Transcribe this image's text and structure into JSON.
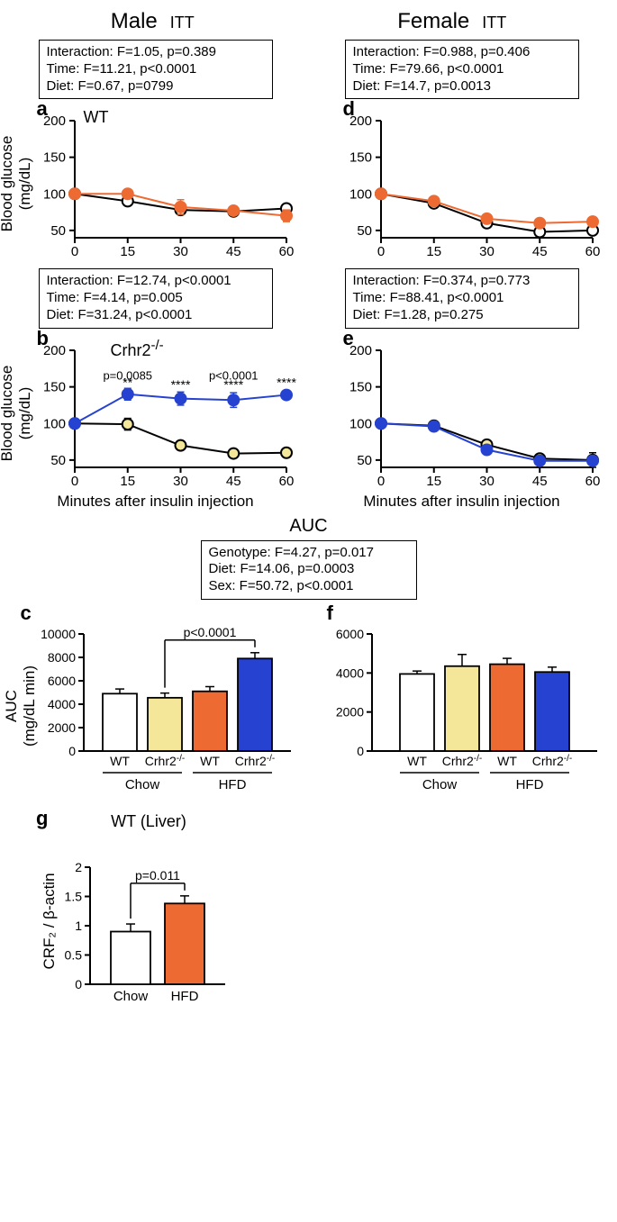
{
  "headers": {
    "male": "Male",
    "female": "Female",
    "itt": "ITT"
  },
  "stats_a": {
    "l1": "Interaction: F=1.05, p=0.389",
    "l2": "Time: F=11.21, p<0.0001",
    "l3": "Diet: F=0.67, p=0799"
  },
  "stats_d": {
    "l1": "Interaction: F=0.988, p=0.406",
    "l2": "Time: F=79.66, p<0.0001",
    "l3": "Diet: F=14.7, p=0.0013"
  },
  "stats_b": {
    "l1": "Interaction: F=12.74, p<0.0001",
    "l2": "Time: F=4.14, p=0.005",
    "l3": "Diet: F=31.24, p<0.0001"
  },
  "stats_e": {
    "l1": "Interaction: F=0.374, p=0.773",
    "l2": "Time: F=88.41, p<0.0001",
    "l3": "Diet: F=1.28, p=0.275"
  },
  "auc_title": "AUC",
  "stats_auc": {
    "l1": "Genotype: F=4.27, p=0.017",
    "l2": "Diet: F=14.06, p=0.0003",
    "l3": "Sex: F=50.72, p<0.0001"
  },
  "labels": {
    "a": "a",
    "b": "b",
    "c": "c",
    "d": "d",
    "e": "e",
    "f": "f",
    "g": "g",
    "wt": "WT",
    "crhr2": "Crhr2",
    "crhr2_sup": "-/-",
    "ylabel_glucose": "Blood glucose\n(mg/dL)",
    "xlabel": "Minutes after insulin injection",
    "ylabel_auc": "AUC\n(mg/dL min)",
    "chow": "Chow",
    "hfd": "HFD",
    "g_title": "WT (Liver)",
    "g_ylabel": "CRF₂ / β-actin",
    "g_p": "p=0.011",
    "c_p": "p<0.0001",
    "b_p1": "p=0.0085",
    "b_p2": "p<0.0001",
    "star2": "**",
    "star4": "****"
  },
  "colors": {
    "open": "#ffffff",
    "black": "#000000",
    "orange": "#ed6a32",
    "orange_line": "#ed6a32",
    "blue": "#2642d0",
    "blue_line": "#2642d0",
    "yellow": "#f5e79a",
    "axis": "#000000"
  },
  "line_axis": {
    "xticks": [
      0,
      15,
      30,
      45,
      60
    ],
    "yticks": [
      50,
      100,
      150,
      200
    ],
    "ymin": 40,
    "ymax": 200
  },
  "panel_a": {
    "s1": {
      "x": [
        0,
        15,
        30,
        45,
        60
      ],
      "y": [
        100,
        90,
        78,
        76,
        80
      ],
      "err": [
        0,
        4,
        5,
        5,
        6
      ],
      "fill": "open",
      "line": "black"
    },
    "s2": {
      "x": [
        0,
        15,
        30,
        45,
        60
      ],
      "y": [
        100,
        100,
        82,
        77,
        70
      ],
      "err": [
        0,
        3,
        10,
        5,
        8
      ],
      "fill": "orange",
      "line": "orange_line"
    }
  },
  "panel_d": {
    "s1": {
      "x": [
        0,
        15,
        30,
        45,
        60
      ],
      "y": [
        100,
        87,
        60,
        48,
        50
      ],
      "err": [
        0,
        4,
        3,
        3,
        3
      ],
      "fill": "open",
      "line": "black"
    },
    "s2": {
      "x": [
        0,
        15,
        30,
        45,
        60
      ],
      "y": [
        100,
        90,
        66,
        60,
        62
      ],
      "err": [
        0,
        3,
        3,
        3,
        3
      ],
      "fill": "orange",
      "line": "orange_line"
    }
  },
  "panel_b": {
    "s1": {
      "x": [
        0,
        15,
        30,
        45,
        60
      ],
      "y": [
        100,
        99,
        70,
        59,
        60
      ],
      "err": [
        0,
        8,
        4,
        4,
        3
      ],
      "fill": "yellow",
      "line": "black"
    },
    "s2": {
      "x": [
        0,
        15,
        30,
        45,
        60
      ],
      "y": [
        100,
        140,
        134,
        132,
        139
      ],
      "err": [
        0,
        8,
        9,
        10,
        5
      ],
      "fill": "blue",
      "line": "blue_line"
    }
  },
  "panel_e": {
    "s1": {
      "x": [
        0,
        15,
        30,
        45,
        60
      ],
      "y": [
        100,
        97,
        71,
        52,
        50
      ],
      "err": [
        0,
        6,
        4,
        5,
        10
      ],
      "fill": "yellow",
      "line": "black"
    },
    "s2": {
      "x": [
        0,
        15,
        30,
        45,
        60
      ],
      "y": [
        100,
        96,
        64,
        49,
        49
      ],
      "err": [
        0,
        5,
        4,
        3,
        4
      ],
      "fill": "blue",
      "line": "blue_line"
    }
  },
  "bar_c": {
    "ymax": 10000,
    "yticks": [
      0,
      2000,
      4000,
      6000,
      8000,
      10000
    ],
    "bars": [
      {
        "v": 4900,
        "err": 400,
        "fill": "open"
      },
      {
        "v": 4550,
        "err": 400,
        "fill": "yellow"
      },
      {
        "v": 5100,
        "err": 400,
        "fill": "orange"
      },
      {
        "v": 7900,
        "err": 500,
        "fill": "blue"
      }
    ]
  },
  "bar_f": {
    "ymax": 6000,
    "yticks": [
      0,
      2000,
      4000,
      6000
    ],
    "bars": [
      {
        "v": 3950,
        "err": 150,
        "fill": "open"
      },
      {
        "v": 4350,
        "err": 600,
        "fill": "yellow"
      },
      {
        "v": 4450,
        "err": 300,
        "fill": "orange"
      },
      {
        "v": 4050,
        "err": 250,
        "fill": "blue"
      }
    ]
  },
  "bar_g": {
    "ymax": 2.0,
    "yticks": [
      0,
      0.5,
      1.0,
      1.5,
      2.0
    ],
    "bars": [
      {
        "v": 0.9,
        "err": 0.13,
        "fill": "open"
      },
      {
        "v": 1.38,
        "err": 0.13,
        "fill": "orange"
      }
    ]
  }
}
